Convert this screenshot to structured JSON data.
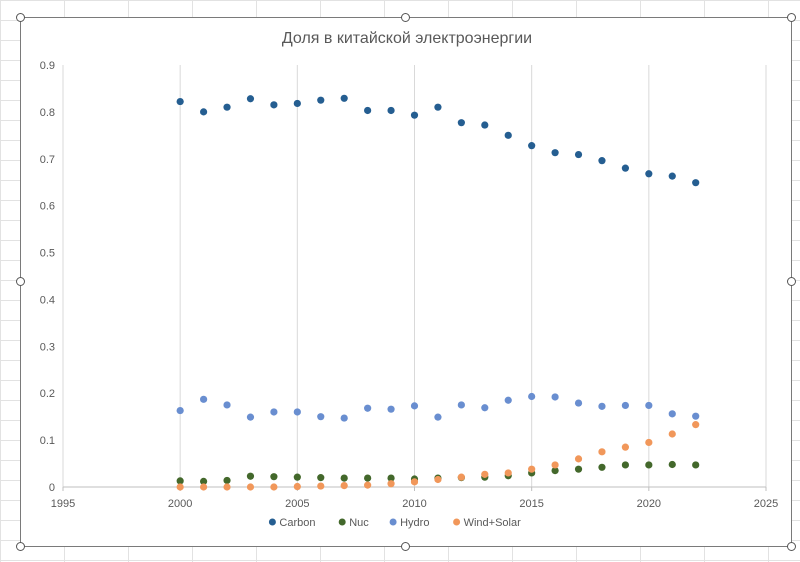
{
  "chart_data": {
    "type": "scatter",
    "title": "Доля в китайской электроэнергии",
    "xlim": [
      1995,
      2025
    ],
    "ylim": [
      0,
      0.9
    ],
    "x_ticks": [
      1995,
      2000,
      2005,
      2010,
      2015,
      2020,
      2025
    ],
    "y_ticks": [
      0,
      0.1,
      0.2,
      0.3,
      0.4,
      0.5,
      0.6,
      0.7,
      0.8,
      0.9
    ],
    "x_tick_labels": [
      "1995",
      "2000",
      "2005",
      "2010",
      "2015",
      "2020",
      "2025"
    ],
    "y_tick_labels": [
      "0",
      "0.1",
      "0.2",
      "0.3",
      "0.4",
      "0.5",
      "0.6",
      "0.7",
      "0.8",
      "0.9"
    ],
    "grid": "vertical",
    "legend_position": "bottom",
    "x": [
      2000,
      2001,
      2002,
      2003,
      2004,
      2005,
      2006,
      2007,
      2008,
      2009,
      2010,
      2011,
      2012,
      2013,
      2014,
      2015,
      2016,
      2017,
      2018,
      2019,
      2020,
      2021,
      2022
    ],
    "series": [
      {
        "name": "Carbon",
        "color": "#255e91",
        "values": [
          0.822,
          0.8,
          0.81,
          0.828,
          0.815,
          0.818,
          0.825,
          0.829,
          0.803,
          0.803,
          0.793,
          0.81,
          0.777,
          0.772,
          0.75,
          0.728,
          0.713,
          0.709,
          0.696,
          0.68,
          0.668,
          0.663,
          0.649
        ]
      },
      {
        "name": "Nuc",
        "color": "#43682b",
        "values": [
          0.013,
          0.012,
          0.014,
          0.023,
          0.022,
          0.021,
          0.02,
          0.019,
          0.019,
          0.019,
          0.017,
          0.019,
          0.02,
          0.021,
          0.024,
          0.03,
          0.035,
          0.038,
          0.042,
          0.047,
          0.047,
          0.048,
          0.047
        ]
      },
      {
        "name": "Hydro",
        "color": "#698ed0",
        "values": [
          0.163,
          0.187,
          0.175,
          0.149,
          0.16,
          0.16,
          0.15,
          0.147,
          0.168,
          0.166,
          0.173,
          0.149,
          0.175,
          0.169,
          0.185,
          0.193,
          0.192,
          0.179,
          0.172,
          0.174,
          0.174,
          0.156,
          0.151
        ]
      },
      {
        "name": "Wind+Solar",
        "color": "#f1975a",
        "values": [
          0.0,
          0.0,
          0.0,
          0.0,
          0.0,
          0.001,
          0.002,
          0.003,
          0.004,
          0.007,
          0.011,
          0.016,
          0.021,
          0.027,
          0.03,
          0.038,
          0.047,
          0.06,
          0.075,
          0.085,
          0.095,
          0.113,
          0.133
        ]
      }
    ]
  }
}
